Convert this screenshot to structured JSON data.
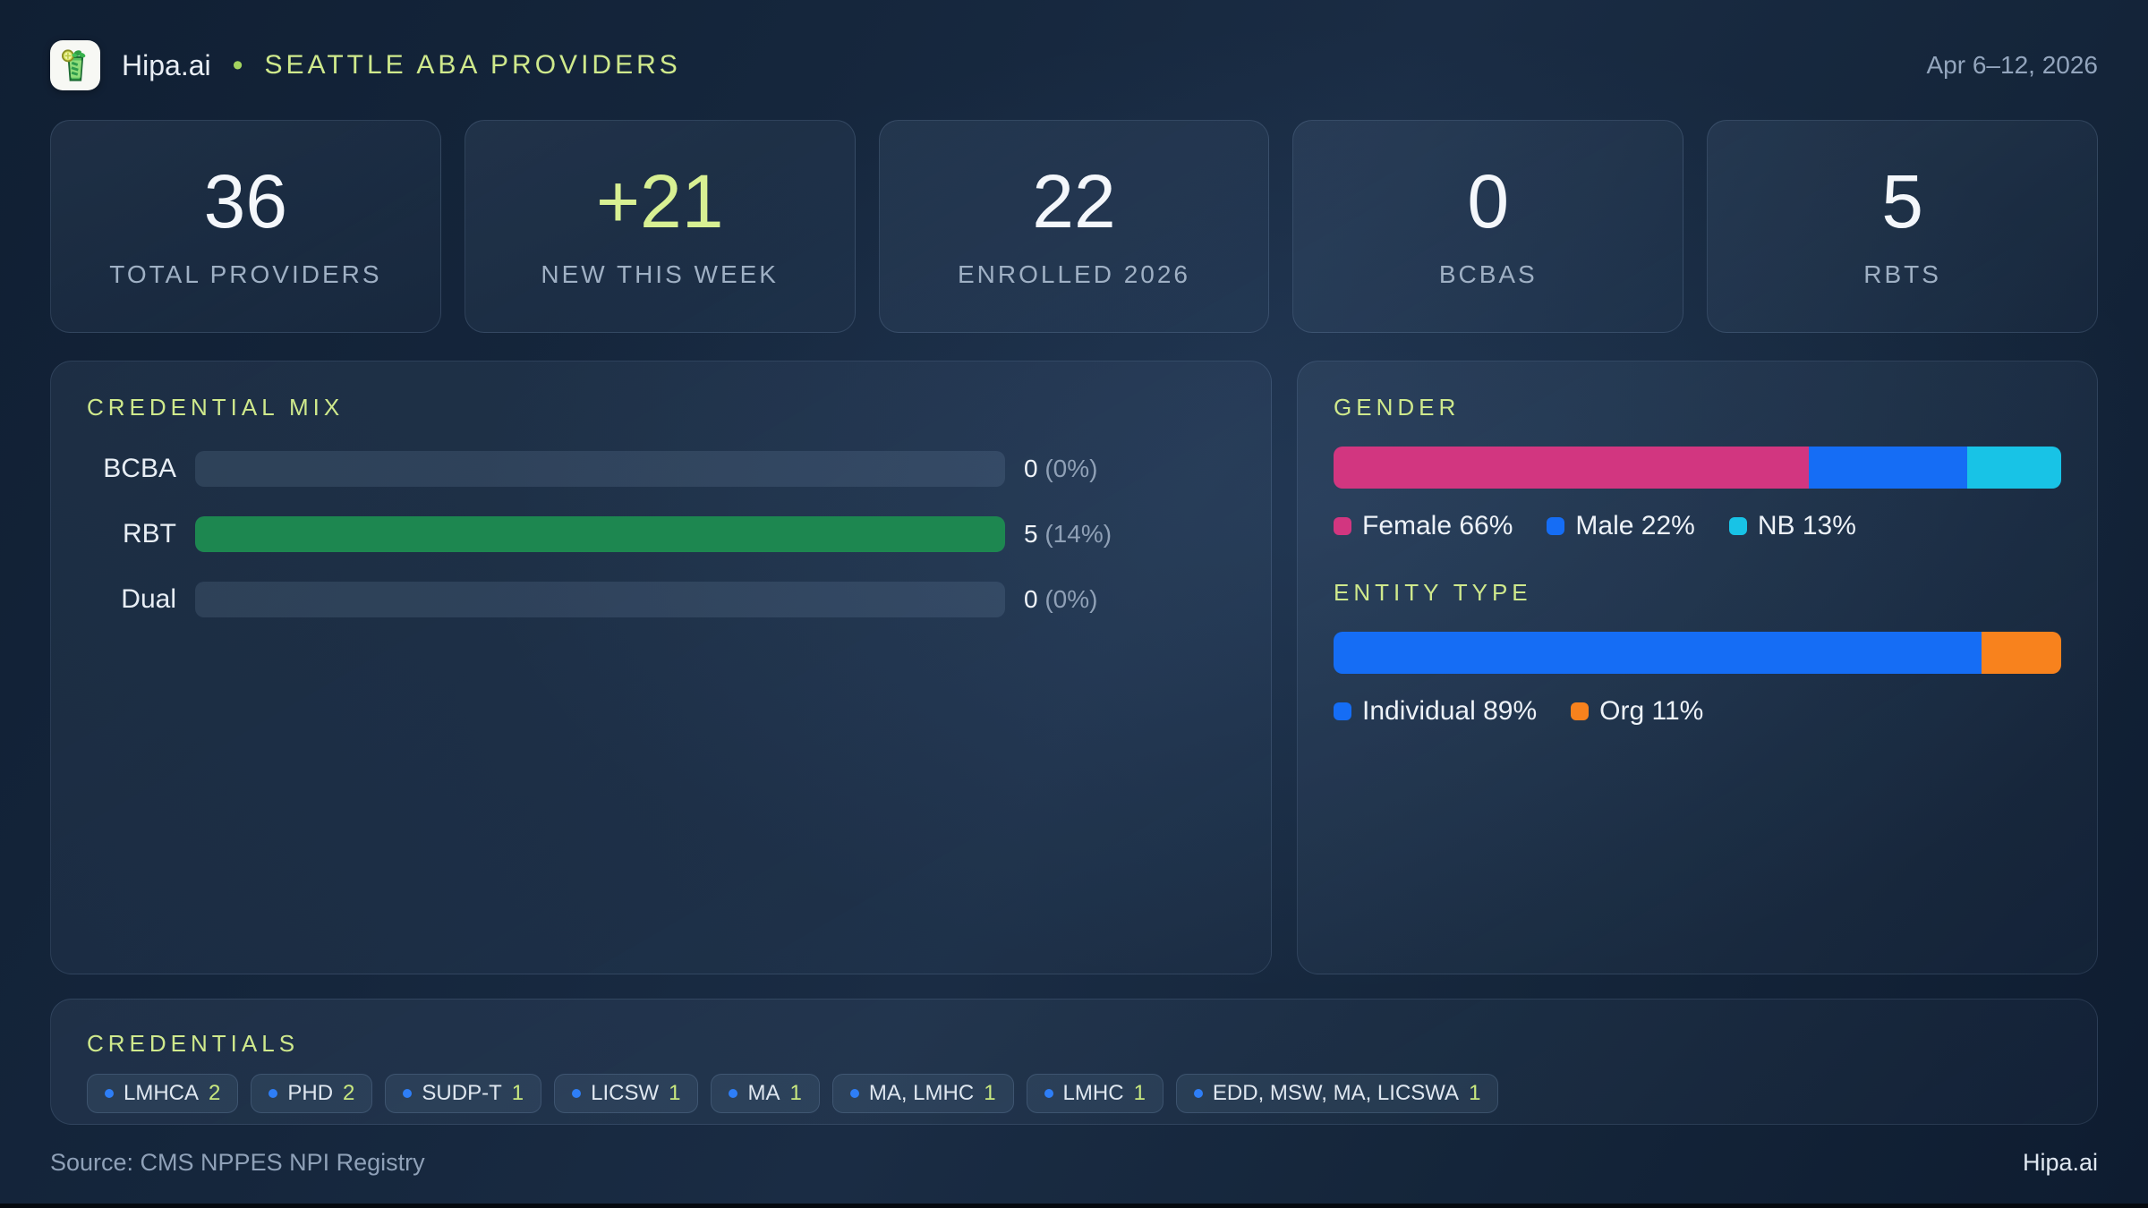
{
  "header": {
    "brand": "Hipa.ai",
    "separator": "•",
    "title": "SEATTLE ABA PROVIDERS",
    "date_range": "Apr 6–12, 2026",
    "logo_icon": "mojito-drink-icon"
  },
  "stats": [
    {
      "value": "36",
      "label": "TOTAL PROVIDERS"
    },
    {
      "value": "+21",
      "label": "NEW THIS WEEK"
    },
    {
      "value": "22",
      "label": "ENROLLED 2026"
    },
    {
      "value": "0",
      "label": "BCBAS"
    },
    {
      "value": "5",
      "label": "RBTS"
    }
  ],
  "credential_mix": {
    "title": "CREDENTIAL MIX",
    "rows": [
      {
        "label": "BCBA",
        "value": "0",
        "percent": "(0%)",
        "fill_pct": 0,
        "fill_color": "#1d8750"
      },
      {
        "label": "RBT",
        "value": "5",
        "percent": "(14%)",
        "fill_pct": 100,
        "fill_color": "#1d8750"
      },
      {
        "label": "Dual",
        "value": "0",
        "percent": "(0%)",
        "fill_pct": 0,
        "fill_color": "#1d8750"
      }
    ]
  },
  "gender": {
    "title": "GENDER",
    "segments": [
      {
        "label": "Female",
        "pct": 66,
        "color": "#d23680",
        "display": "Female 66%"
      },
      {
        "label": "Male",
        "pct": 22,
        "color": "#156df5",
        "display": "Male 22%"
      },
      {
        "label": "NB",
        "pct": 13,
        "color": "#18c3e6",
        "display": "NB 13%"
      }
    ]
  },
  "entity_type": {
    "title": "ENTITY TYPE",
    "segments": [
      {
        "label": "Individual",
        "pct": 89,
        "color": "#156df5",
        "display": "Individual 89%"
      },
      {
        "label": "Org",
        "pct": 11,
        "color": "#f8821d",
        "display": "Org 11%"
      }
    ]
  },
  "credentials": {
    "title": "CREDENTIALS",
    "chips": [
      {
        "label": "LMHCA",
        "count": "2"
      },
      {
        "label": "PHD",
        "count": "2"
      },
      {
        "label": "SUDP-T",
        "count": "1"
      },
      {
        "label": "LICSW",
        "count": "1"
      },
      {
        "label": "MA",
        "count": "1"
      },
      {
        "label": "MA, LMHC",
        "count": "1"
      },
      {
        "label": "LMHC",
        "count": "1"
      },
      {
        "label": "EDD, MSW, MA, LICSWA",
        "count": "1"
      }
    ]
  },
  "footer": {
    "source": "Source: CMS NPPES NPI Registry",
    "brand": "Hipa.ai"
  },
  "chart_data": [
    {
      "type": "bar",
      "orientation": "horizontal",
      "title": "CREDENTIAL MIX",
      "categories": [
        "BCBA",
        "RBT",
        "Dual"
      ],
      "values": [
        0,
        5,
        0
      ],
      "value_labels": [
        "0 (0%)",
        "5 (14%)",
        "0 (0%)"
      ],
      "bar_color": "#1d8750",
      "grid": false
    },
    {
      "type": "bar",
      "subtype": "stacked-100pct",
      "title": "GENDER",
      "categories": [
        "Female",
        "Male",
        "NB"
      ],
      "values": [
        66,
        22,
        13
      ],
      "unit": "%",
      "colors": [
        "#d23680",
        "#156df5",
        "#18c3e6"
      ],
      "legend_position": "bottom"
    },
    {
      "type": "bar",
      "subtype": "stacked-100pct",
      "title": "ENTITY TYPE",
      "categories": [
        "Individual",
        "Org"
      ],
      "values": [
        89,
        11
      ],
      "unit": "%",
      "colors": [
        "#156df5",
        "#f8821d"
      ],
      "legend_position": "bottom"
    }
  ]
}
